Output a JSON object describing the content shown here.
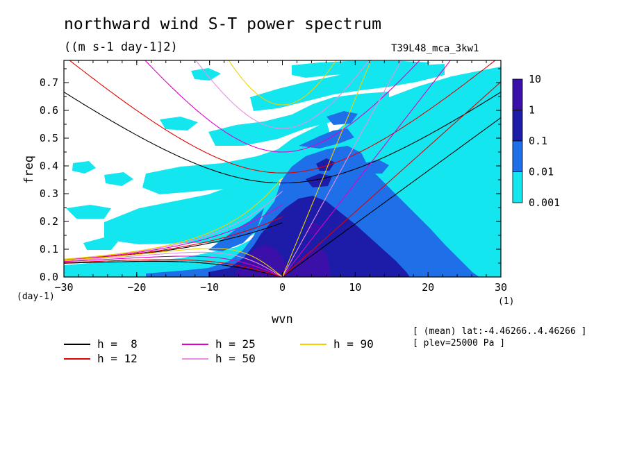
{
  "figure": {
    "title": "northward wind S-T power spectrum",
    "subtitle": "((m s-1 day-1]2)",
    "run_id": "T39L48_mca_3kw1",
    "meta_lines": [
      "[ (mean) lat:-4.46266..4.46266 ]",
      "[ plev=25000 Pa ]"
    ]
  },
  "chart_data": {
    "type": "heatmap",
    "title": "northward wind S-T power spectrum",
    "units": "((m s-1 day-1]2)",
    "xlabel": "wvn",
    "x_unit_label": "(1)",
    "ylabel": "freq",
    "y_unit_label": "(day-1)",
    "xlim": [
      -30,
      30
    ],
    "ylim": [
      0,
      0.78
    ],
    "x_ticks": [
      -30,
      -20,
      -10,
      0,
      10,
      20,
      30
    ],
    "x_tick_labels": [
      "-30",
      "-20",
      "-10",
      "0",
      "10",
      "20",
      "30"
    ],
    "y_ticks": [
      0,
      0.1,
      0.2,
      0.3,
      0.4,
      0.5,
      0.6,
      0.7
    ],
    "y_tick_labels": [
      "0.0",
      "0.1",
      "0.2",
      "0.3",
      "0.4",
      "0.5",
      "0.6",
      "0.7"
    ],
    "colorbar": {
      "levels": [
        "10",
        "1",
        "0.1",
        "0.01",
        "0.001"
      ],
      "colors": [
        "#3a10a8",
        "#1c1ca8",
        "#1f6fe8",
        "#14e6f0"
      ]
    },
    "shading_colors": {
      "cyan": "#14e6f0",
      "blue": "#1f6fe8",
      "navy": "#1c1ca8",
      "purple": "#3a10a8"
    },
    "dispersion_curves": [
      {
        "label": "h =  8",
        "h": 8,
        "color": "#000000"
      },
      {
        "label": "h = 12",
        "h": 12,
        "color": "#e00000"
      },
      {
        "label": "h = 25",
        "h": 25,
        "color": "#e000c8"
      },
      {
        "label": "h = 50",
        "h": 50,
        "color": "#e88ee0"
      },
      {
        "label": "h = 90",
        "h": 90,
        "color": "#f0d000"
      }
    ]
  }
}
